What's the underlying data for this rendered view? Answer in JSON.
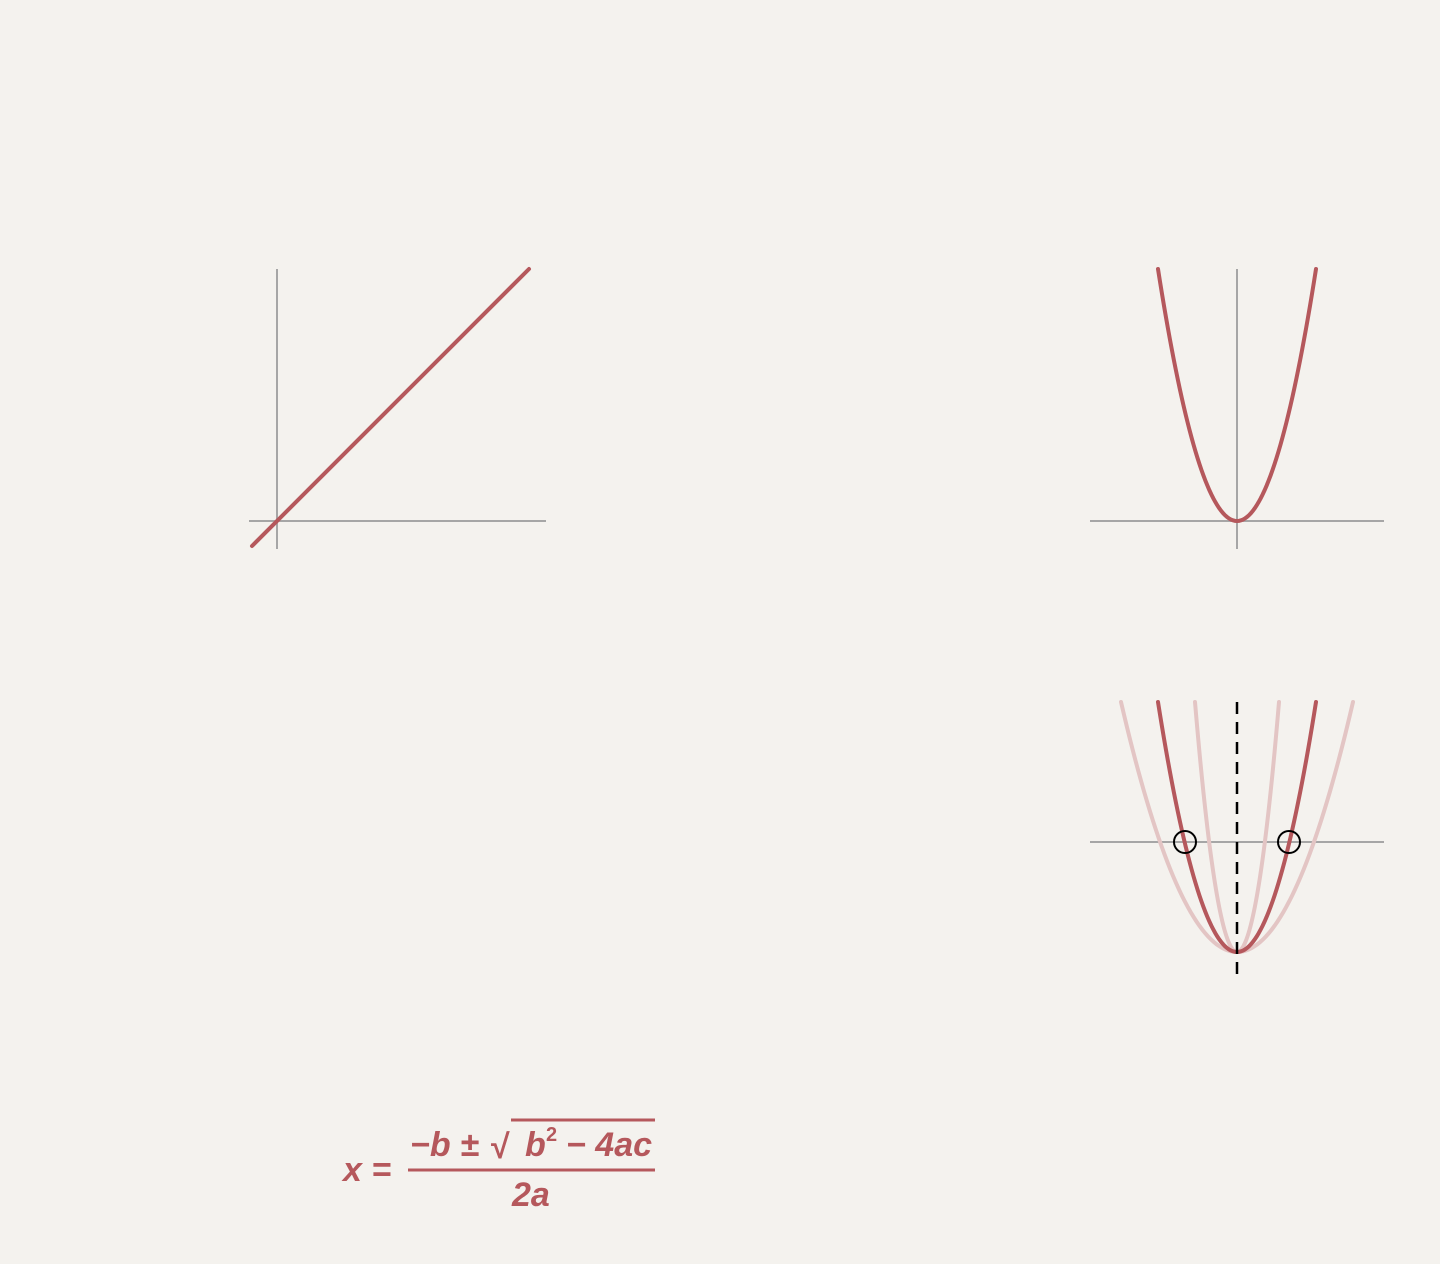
{
  "colors": {
    "background": "#f4f2ee",
    "axis": "#a6a6a6",
    "curve": "#b5585c",
    "curve_faint": "#e3c5c4",
    "symmetry_line": "#000000",
    "root_marker": "#000000"
  },
  "panels": {
    "linear": {
      "function": "y = x",
      "shows_axes": true
    },
    "parabola": {
      "function": "y = x^2",
      "shows_axes": true
    },
    "roots": {
      "main_curve": "y = a x^2 + c",
      "faint_curves": 2,
      "symmetry_line": "dashed",
      "root_markers": 2
    }
  },
  "formula": {
    "lhs": "x =",
    "numerator_lead": "−b ±",
    "radical_symbol": "√",
    "radicand_b": "b",
    "radicand_exp": "2",
    "radicand_rest": "− 4ac",
    "denominator": "2a"
  }
}
